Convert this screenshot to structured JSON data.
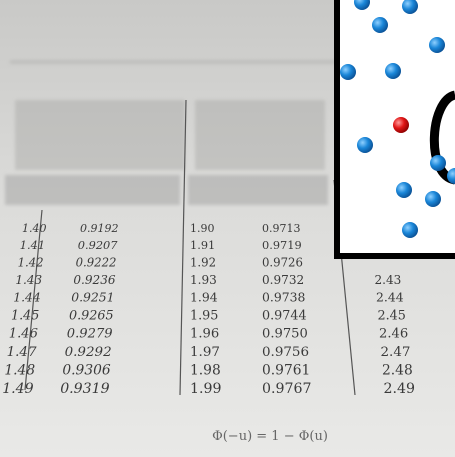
{
  "table": {
    "rows": [
      [
        "1.40",
        "0.9192",
        "1.90",
        "0.9713"
      ],
      [
        "1.41",
        "0.9207",
        "1.91",
        "0.9719"
      ],
      [
        "1.42",
        "0.9222",
        "1.92",
        "0.9726"
      ],
      [
        "1.43",
        "0.9236",
        "1.93",
        "0.9732",
        "2.43"
      ],
      [
        "1.44",
        "0.9251",
        "1.94",
        "0.9738",
        "2.44"
      ],
      [
        "1.45",
        "0.9265",
        "1.95",
        "0.9744",
        "2.45"
      ],
      [
        "1.46",
        "0.9279",
        "1.96",
        "0.9750",
        "2.46"
      ],
      [
        "1.47",
        "0.9292",
        "1.97",
        "0.9756",
        "2.47"
      ],
      [
        "1.48",
        "0.9306",
        "1.98",
        "0.9761",
        "2.48"
      ],
      [
        "1.49",
        "0.9319",
        "1.99",
        "0.9767",
        "2.49"
      ]
    ]
  },
  "formula": "Φ(−u) = 1 − Φ(u)"
}
